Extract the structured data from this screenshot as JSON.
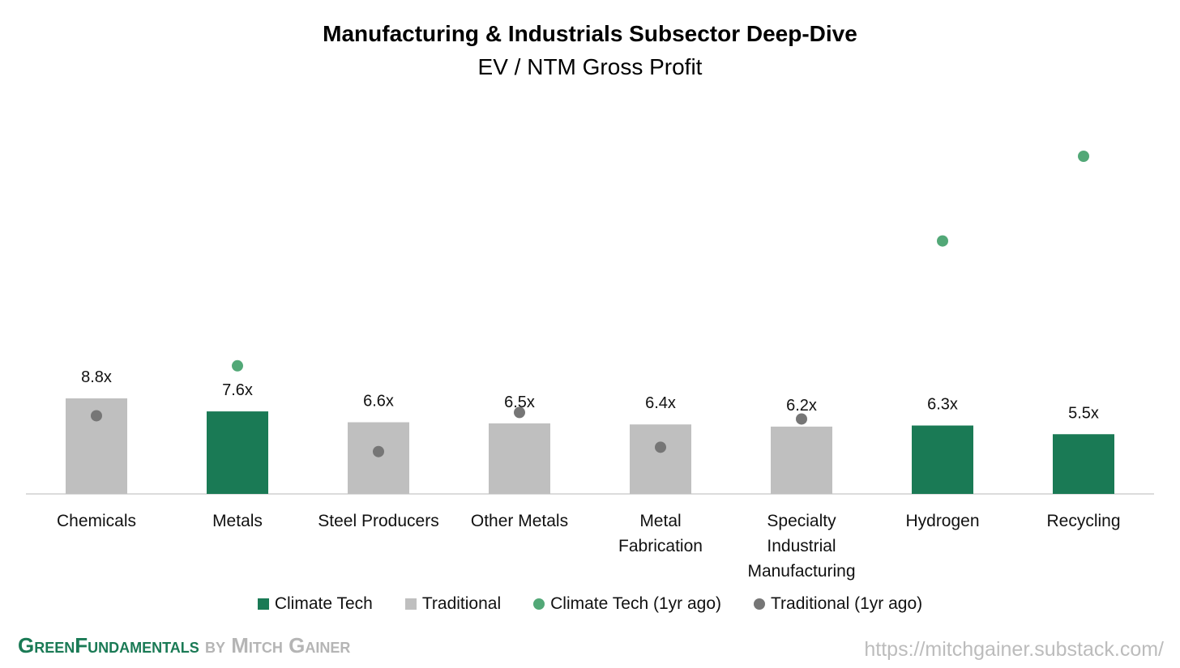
{
  "chart_data": {
    "type": "bar",
    "title": "Manufacturing & Industrials Subsector Deep-Dive",
    "subtitle": "EV / NTM Gross Profit",
    "categories": [
      "Chemicals",
      "Metals",
      "Steel Producers",
      "Other Metals",
      "Metal Fabrication",
      "Specialty Industrial Manufacturing",
      "Hydrogen",
      "Recycling"
    ],
    "series": [
      {
        "name": "Climate Tech",
        "type": "bar",
        "color": "#1a7a55",
        "values": [
          null,
          7.6,
          null,
          null,
          null,
          null,
          6.3,
          5.5
        ],
        "value_labels": [
          null,
          "7.6x",
          null,
          null,
          null,
          null,
          "6.3x",
          "5.5x"
        ]
      },
      {
        "name": "Traditional",
        "type": "bar",
        "color": "#bfbfbf",
        "values": [
          8.8,
          null,
          6.6,
          6.5,
          6.4,
          6.2,
          null,
          null
        ],
        "value_labels": [
          "8.8x",
          null,
          "6.6x",
          "6.5x",
          "6.4x",
          "6.2x",
          null,
          null
        ]
      },
      {
        "name": "Climate Tech (1yr ago)",
        "type": "scatter",
        "color": "#52a877",
        "values": [
          null,
          11.8,
          null,
          null,
          null,
          null,
          23.3,
          31.1
        ]
      },
      {
        "name": "Traditional (1yr ago)",
        "type": "scatter",
        "color": "#767676",
        "values": [
          7.2,
          null,
          3.9,
          7.5,
          4.3,
          6.9,
          null,
          null
        ]
      }
    ]
  },
  "footer": {
    "brand": "GreenFundamentals",
    "byline": "by Mitch Gainer",
    "url": "https://mitchgainer.substack.com/"
  }
}
